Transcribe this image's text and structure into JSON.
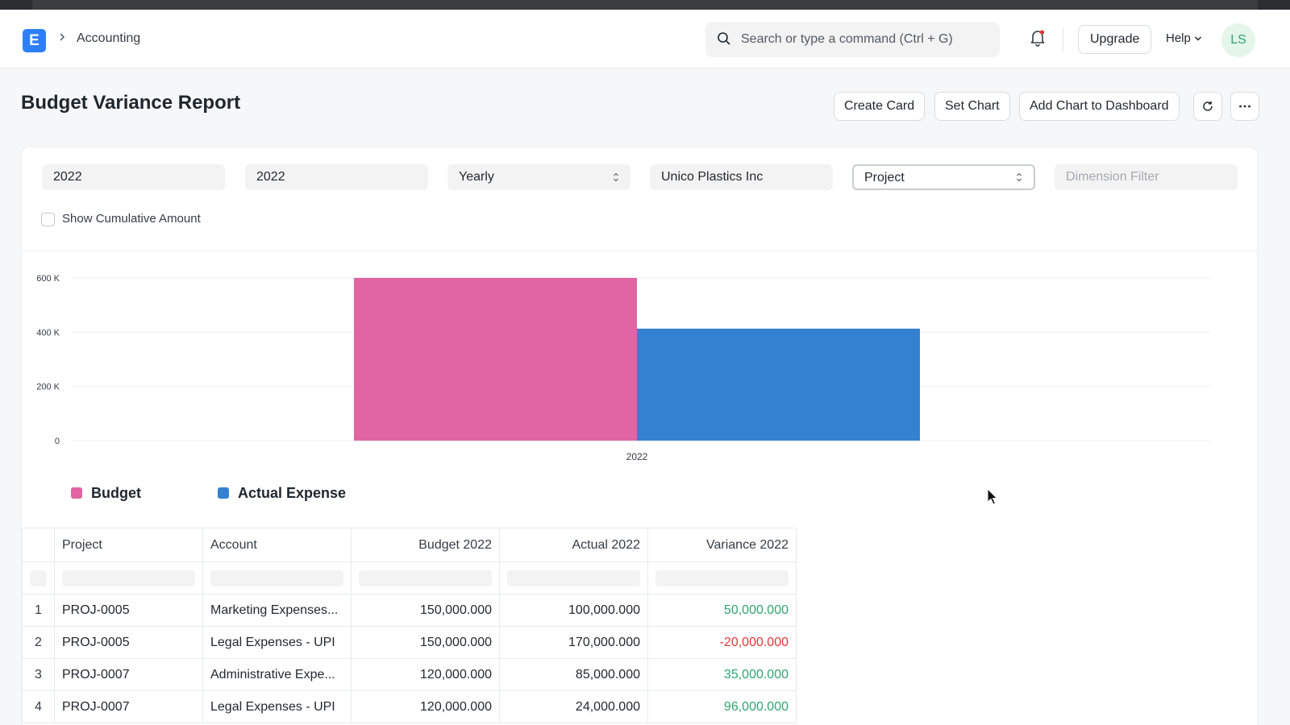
{
  "navbar": {
    "logo_letter": "E",
    "breadcrumb": "Accounting",
    "search_placeholder": "Search or type a command (Ctrl + G)",
    "upgrade_label": "Upgrade",
    "help_label": "Help",
    "avatar_initials": "LS"
  },
  "page": {
    "title": "Budget Variance Report",
    "actions": {
      "create_card": "Create Card",
      "set_chart": "Set Chart",
      "add_chart": "Add Chart to Dashboard"
    }
  },
  "filters": {
    "from_year": "2022",
    "to_year": "2022",
    "period": "Yearly",
    "company": "Unico Plastics Inc",
    "budget_against": "Project",
    "dimension_placeholder": "Dimension Filter",
    "cumulative_label": "Show Cumulative Amount",
    "cumulative_checked": false
  },
  "chart_data": {
    "type": "bar",
    "categories": [
      "2022"
    ],
    "series": [
      {
        "name": "Budget",
        "values": [
          600000
        ],
        "color": "#e065a2"
      },
      {
        "name": "Actual Expense",
        "values": [
          413000
        ],
        "color": "#3381d0"
      }
    ],
    "yticks": [
      0,
      200000,
      400000,
      600000
    ],
    "ytick_labels": [
      "0",
      "200 K",
      "400 K",
      "600 K"
    ],
    "ylim": [
      0,
      600000
    ],
    "title": "",
    "xlabel": "",
    "ylabel": "",
    "grid": true,
    "legend": "bottom-left"
  },
  "table": {
    "columns": [
      "Project",
      "Account",
      "Budget 2022",
      "Actual 2022",
      "Variance 2022"
    ],
    "rows": [
      {
        "idx": "1",
        "project": "PROJ-0005",
        "account": "Marketing Expenses...",
        "budget": "150,000.000",
        "actual": "100,000.000",
        "variance": "50,000.000"
      },
      {
        "idx": "2",
        "project": "PROJ-0005",
        "account": "Legal Expenses - UPI",
        "budget": "150,000.000",
        "actual": "170,000.000",
        "variance": "-20,000.000"
      },
      {
        "idx": "3",
        "project": "PROJ-0007",
        "account": "Administrative Expe...",
        "budget": "120,000.000",
        "actual": "85,000.000",
        "variance": "35,000.000"
      },
      {
        "idx": "4",
        "project": "PROJ-0007",
        "account": "Legal Expenses - UPI",
        "budget": "120,000.000",
        "actual": "24,000.000",
        "variance": "96,000.000"
      }
    ]
  },
  "colors": {
    "positive": "#30a66d",
    "negative": "#e03636",
    "accent": "#2d7ff9"
  }
}
